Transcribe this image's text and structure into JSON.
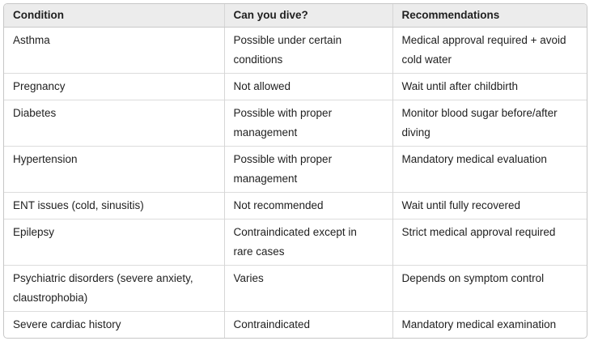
{
  "table": {
    "columns": [
      "Condition",
      "Can you dive?",
      "Recommendations"
    ],
    "rows": [
      {
        "cells": [
          "Asthma",
          [
            "Possible under certain",
            "conditions"
          ],
          [
            "Medical approval required + avoid",
            "cold water"
          ]
        ]
      },
      {
        "cells": [
          "Pregnancy",
          "Not allowed",
          "Wait until after childbirth"
        ]
      },
      {
        "cells": [
          "Diabetes",
          [
            "Possible with proper",
            "management"
          ],
          [
            "Monitor blood sugar before/after",
            "diving"
          ]
        ]
      },
      {
        "cells": [
          "Hypertension",
          [
            "Possible with proper",
            "management"
          ],
          "Mandatory medical evaluation"
        ]
      },
      {
        "cells": [
          "ENT issues (cold, sinusitis)",
          "Not recommended",
          "Wait until fully recovered"
        ]
      },
      {
        "cells": [
          "Epilepsy",
          [
            "Contraindicated except in",
            "rare cases"
          ],
          "Strict medical approval required"
        ]
      },
      {
        "cells": [
          [
            "Psychiatric disorders (severe anxiety,",
            "claustrophobia)"
          ],
          "Varies",
          "Depends on symptom control"
        ]
      },
      {
        "cells": [
          "Severe cardiac history",
          "Contraindicated",
          "Mandatory medical examination"
        ]
      }
    ],
    "colors": {
      "header_background": "#ececec",
      "outer_border": "#c7c7c7",
      "inner_border": "#d6d6d6",
      "text": "#1f1f1f"
    }
  }
}
